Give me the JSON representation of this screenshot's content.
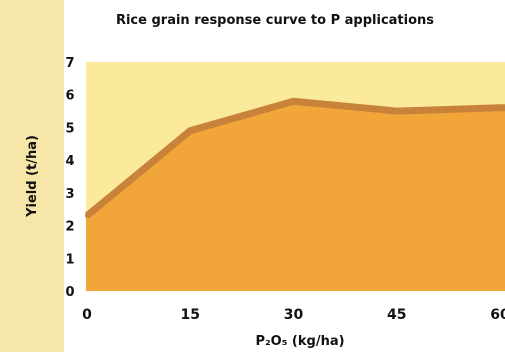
{
  "chart_data": {
    "type": "area",
    "title": "Rice grain response curve to P applications",
    "xlabel": "P₂O₅ (kg/ha)",
    "ylabel": "Yield (t/ha)",
    "x": [
      0,
      15,
      30,
      45,
      60
    ],
    "x_ticks": [
      "0",
      "15",
      "30",
      "45",
      "60"
    ],
    "y_ticks": [
      "0",
      "1",
      "2",
      "3",
      "4",
      "5",
      "6",
      "7"
    ],
    "ylim": [
      0,
      7
    ],
    "xlim": [
      0,
      60
    ],
    "series": [
      {
        "values": [
          2.3,
          4.9,
          5.8,
          5.5,
          5.6
        ]
      }
    ],
    "grid": false,
    "colors": {
      "page_background": "#f6e7a8",
      "plot_background": "#fbe99c",
      "area_fill": "#f2a63a",
      "area_edge": "#c9823a"
    }
  }
}
